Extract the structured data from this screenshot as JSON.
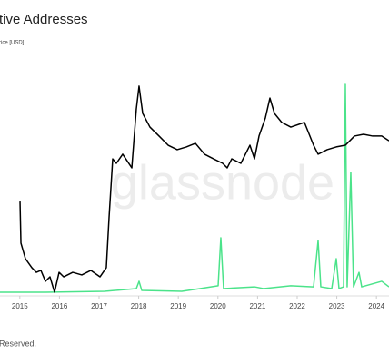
{
  "chart_data": {
    "type": "line",
    "title": "tive Addresses",
    "watermark": "glassnode",
    "footer": "Reserved.",
    "xlim": [
      2014.5,
      2024.317
    ],
    "xticks": [
      2015,
      2016,
      2017,
      2018,
      2019,
      2020,
      2021,
      2022,
      2023,
      2024
    ],
    "ylim": [
      0,
      100
    ],
    "series": [
      {
        "name": "rice [USD]",
        "color": "#000000",
        "x": [
          2015.005,
          2015.028,
          2015.142,
          2015.303,
          2015.417,
          2015.532,
          2015.647,
          2015.761,
          2015.876,
          2015.991,
          2016.106,
          2016.335,
          2016.564,
          2016.794,
          2017.023,
          2017.183,
          2017.252,
          2017.344,
          2017.436,
          2017.596,
          2017.826,
          2017.94,
          2018.009,
          2018.101,
          2018.284,
          2018.514,
          2018.743,
          2018.972,
          2019.202,
          2019.431,
          2019.661,
          2019.89,
          2020.119,
          2020.234,
          2020.349,
          2020.578,
          2020.807,
          2020.922,
          2021.037,
          2021.197,
          2021.312,
          2021.427,
          2021.61,
          2021.839,
          2022.183,
          2022.413,
          2022.528,
          2022.757,
          2022.986,
          2023.216,
          2023.445,
          2023.674,
          2023.904,
          2024.133,
          2024.317
        ],
        "values": [
          43.8,
          24.3,
          17.0,
          12.8,
          10.6,
          11.5,
          6.4,
          8.5,
          1.3,
          10.6,
          8.5,
          10.6,
          9.4,
          11.5,
          8.5,
          12.8,
          36.2,
          63.8,
          61.7,
          66.0,
          59.6,
          87.2,
          97.9,
          85.1,
          78.7,
          74.5,
          70.2,
          68.1,
          69.4,
          71.1,
          66.0,
          63.8,
          61.7,
          59.6,
          63.8,
          61.7,
          70.2,
          63.8,
          74.5,
          83.0,
          92.3,
          85.1,
          80.9,
          78.7,
          80.9,
          70.2,
          66.0,
          68.1,
          69.4,
          70.2,
          74.5,
          75.3,
          74.5,
          74.5,
          72.3
        ]
      },
      {
        "color": "#4be38a",
        "x": [
          2014.5,
          2015.647,
          2017.138,
          2017.94,
          2018.009,
          2018.078,
          2019.087,
          2019.546,
          2020.005,
          2020.073,
          2020.142,
          2020.922,
          2021.151,
          2021.839,
          2022.413,
          2022.528,
          2022.596,
          2022.872,
          2022.986,
          2023.055,
          2023.17,
          2023.216,
          2023.261,
          2023.353,
          2023.422,
          2023.56,
          2023.628,
          2024.133,
          2024.317
        ],
        "values": [
          1.3,
          1.3,
          1.7,
          3.0,
          6.4,
          2.1,
          1.7,
          3.0,
          4.3,
          26.8,
          3.0,
          3.8,
          3.0,
          4.3,
          3.8,
          25.5,
          3.8,
          3.0,
          17.0,
          3.0,
          3.8,
          98.7,
          3.8,
          57.4,
          3.8,
          10.6,
          3.8,
          6.4,
          3.8
        ]
      }
    ]
  }
}
